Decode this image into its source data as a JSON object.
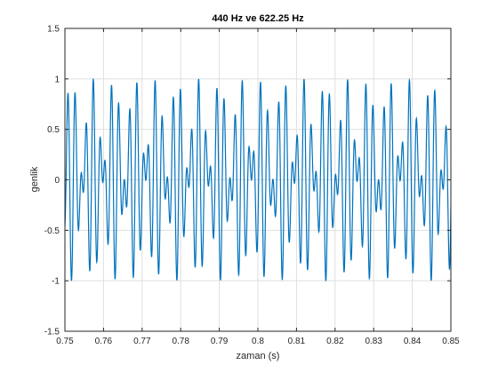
{
  "chart_data": {
    "type": "line",
    "title": "440 Hz ve 622.25 Hz",
    "xlabel": "zaman (s)",
    "ylabel": "genlik",
    "xlim": [
      0.75,
      0.85
    ],
    "ylim": [
      -1.5,
      1.5
    ],
    "grid": true,
    "xticks": [
      "0.75",
      "0.76",
      "0.77",
      "0.78",
      "0.79",
      "0.8",
      "0.81",
      "0.82",
      "0.83",
      "0.84",
      "0.85"
    ],
    "yticks": [
      "-1.5",
      "-1",
      "-0.5",
      "0",
      "0.5",
      "1",
      "1.5"
    ],
    "series": [
      {
        "function": "0.5*sin(2*pi*440*t) + 0.5*sin(2*pi*622.25*t)",
        "frequencies_hz": [
          440,
          622.25
        ],
        "amplitudes": [
          0.5,
          0.5
        ],
        "t_range": [
          0.75,
          0.85
        ],
        "color": "#0072bd"
      }
    ]
  },
  "colors": {
    "line": "#0072bd",
    "grid": "#dfdfdf",
    "axis": "#262626",
    "background": "#ffffff"
  }
}
